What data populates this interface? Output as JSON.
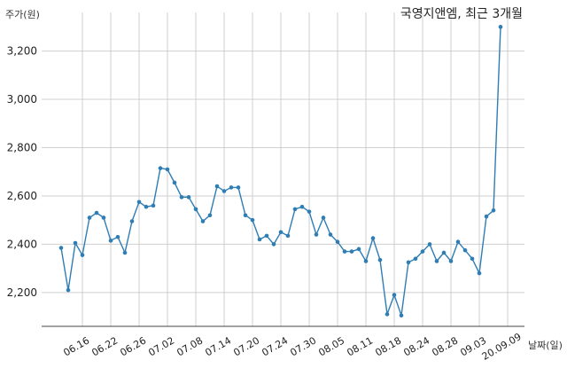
{
  "chart_data": {
    "type": "line",
    "title": "국영지앤엠, 최근 3개월",
    "ylabel": "주가(원)",
    "xlabel": "날짜(일)",
    "ylim": [
      2060,
      3360
    ],
    "yticks": [
      2200,
      2400,
      2600,
      2800,
      3000,
      3200
    ],
    "ytick_labels": [
      "2,200",
      "2,400",
      "2,600",
      "2,800",
      "3,000",
      "3,200"
    ],
    "xtick_labels": [
      "06.16",
      "06.22",
      "06.26",
      "07.02",
      "07.08",
      "07.14",
      "07.20",
      "07.24",
      "07.30",
      "08.05",
      "08.11",
      "08.18",
      "08.24",
      "08.28",
      "09.03",
      "20.09.09"
    ],
    "xtick_index": [
      3,
      7,
      11,
      15,
      19,
      23,
      27,
      31,
      35,
      39,
      43,
      47,
      51,
      55,
      59,
      63
    ],
    "grid": true,
    "series": [
      {
        "color": "#2e7db5",
        "values": [
          2385,
          2210,
          2405,
          2355,
          2510,
          2530,
          2510,
          2415,
          2430,
          2365,
          2495,
          2575,
          2555,
          2560,
          2715,
          2710,
          2655,
          2595,
          2595,
          2545,
          2495,
          2520,
          2640,
          2620,
          2635,
          2635,
          2520,
          2500,
          2420,
          2435,
          2400,
          2450,
          2435,
          2545,
          2555,
          2535,
          2440,
          2510,
          2440,
          2410,
          2370,
          2370,
          2380,
          2330,
          2425,
          2335,
          2110,
          2190,
          2105,
          2325,
          2340,
          2370,
          2400,
          2330,
          2365,
          2330,
          2410,
          2375,
          2340,
          2280,
          2515,
          2540,
          3300
        ]
      }
    ]
  }
}
